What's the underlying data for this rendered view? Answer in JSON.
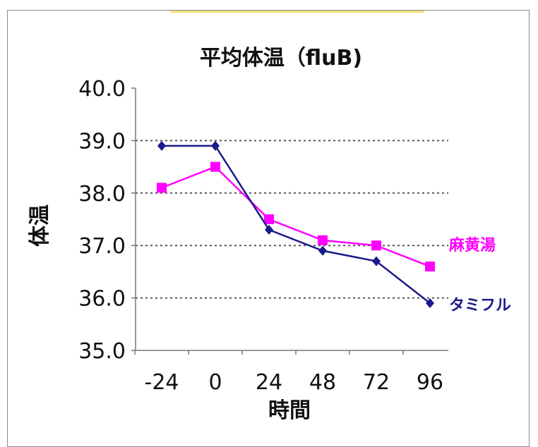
{
  "chart_data": {
    "type": "line",
    "title": "平均体温（fluB)",
    "xlabel": "時間",
    "ylabel": "体温",
    "categories": [
      "-24",
      "0",
      "24",
      "48",
      "72",
      "96"
    ],
    "ylim": [
      35.0,
      40.0
    ],
    "yticks": [
      "35.0",
      "36.0",
      "37.0",
      "38.0",
      "39.0",
      "40.0"
    ],
    "grid": "horizontal dotted",
    "series": [
      {
        "name": "麻黄湯",
        "color": "#ff00ff",
        "marker": "square",
        "values": [
          38.1,
          38.5,
          37.5,
          37.1,
          37.0,
          36.6
        ]
      },
      {
        "name": "タミフル",
        "color": "#1a1a8c",
        "marker": "diamond",
        "values": [
          38.9,
          38.9,
          37.3,
          36.9,
          36.7,
          35.9
        ]
      }
    ]
  }
}
